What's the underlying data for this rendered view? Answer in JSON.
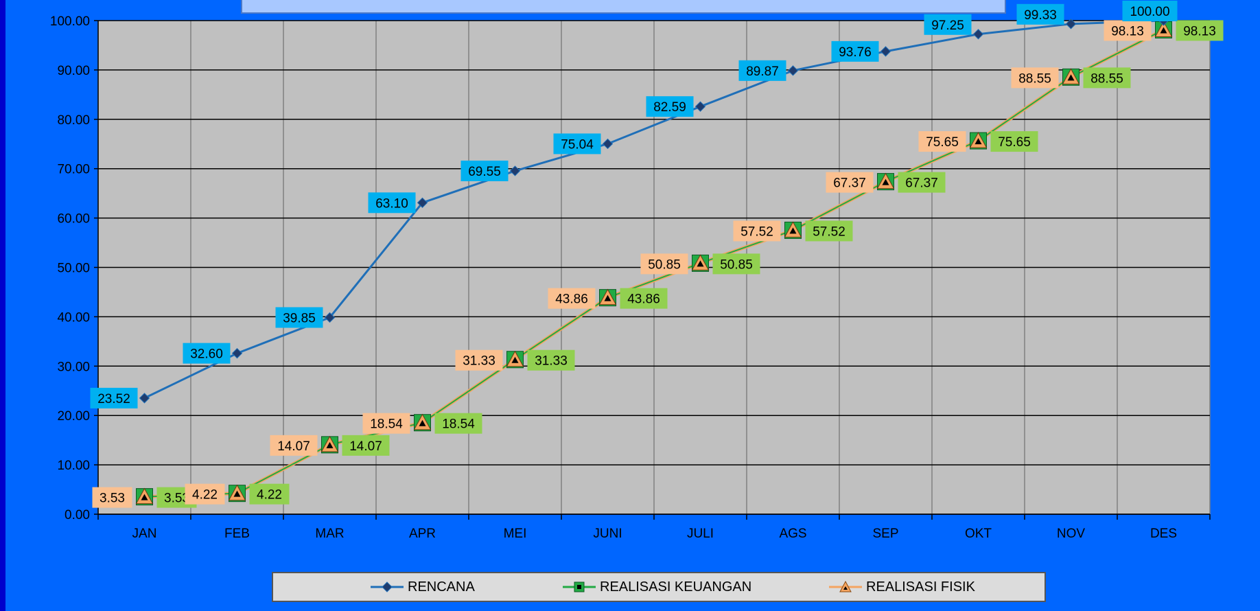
{
  "chart_data": {
    "type": "line",
    "categories": [
      "JAN",
      "FEB",
      "MAR",
      "APR",
      "MEI",
      "JUNI",
      "JULI",
      "AGS",
      "SEP",
      "OKT",
      "NOV",
      "DES"
    ],
    "ylim": [
      0,
      100
    ],
    "yticks": [
      "0.00",
      "10.00",
      "20.00",
      "30.00",
      "40.00",
      "50.00",
      "60.00",
      "70.00",
      "80.00",
      "90.00",
      "100.00"
    ],
    "grid": true,
    "legend_position": "bottom",
    "series": [
      {
        "name": "RENCANA",
        "color": "#1f6fb8",
        "marker": "diamond",
        "label_bg": "#00b0f0",
        "values": [
          23.52,
          32.6,
          39.85,
          63.1,
          69.55,
          75.04,
          82.59,
          89.87,
          93.76,
          97.25,
          99.33,
          100.0
        ],
        "labels": [
          "23.52",
          "32.60",
          "39.85",
          "63.10",
          "69.55",
          "75.04",
          "82.59",
          "89.87",
          "93.76",
          "97.25",
          "99.33",
          "100.00"
        ]
      },
      {
        "name": "REALISASI KEUANGAN",
        "color": "#22aa44",
        "marker": "square",
        "label_bg": "#92d050",
        "values": [
          3.53,
          4.22,
          14.07,
          18.54,
          31.33,
          43.86,
          50.85,
          57.52,
          67.37,
          75.65,
          88.55,
          98.13
        ],
        "labels": [
          "3.53",
          "4.22",
          "14.07",
          "18.54",
          "31.33",
          "43.86",
          "50.85",
          "57.52",
          "67.37",
          "75.65",
          "88.55",
          "98.13"
        ]
      },
      {
        "name": "REALISASI FISIK",
        "color": "#f4a460",
        "marker": "triangle",
        "label_bg": "#fac090",
        "values": [
          3.53,
          4.22,
          14.07,
          18.54,
          31.33,
          43.86,
          50.85,
          57.52,
          67.37,
          75.65,
          88.55,
          98.13
        ],
        "labels": [
          "3.53",
          "4.22",
          "14.07",
          "18.54",
          "31.33",
          "43.86",
          "50.85",
          "57.52",
          "67.37",
          "75.65",
          "88.55",
          "98.13"
        ]
      }
    ]
  },
  "colors": {
    "frame": "#0066ff",
    "plot_bg": "#c0c0c0",
    "gridline": "#000000",
    "vgrid": "#808080"
  }
}
